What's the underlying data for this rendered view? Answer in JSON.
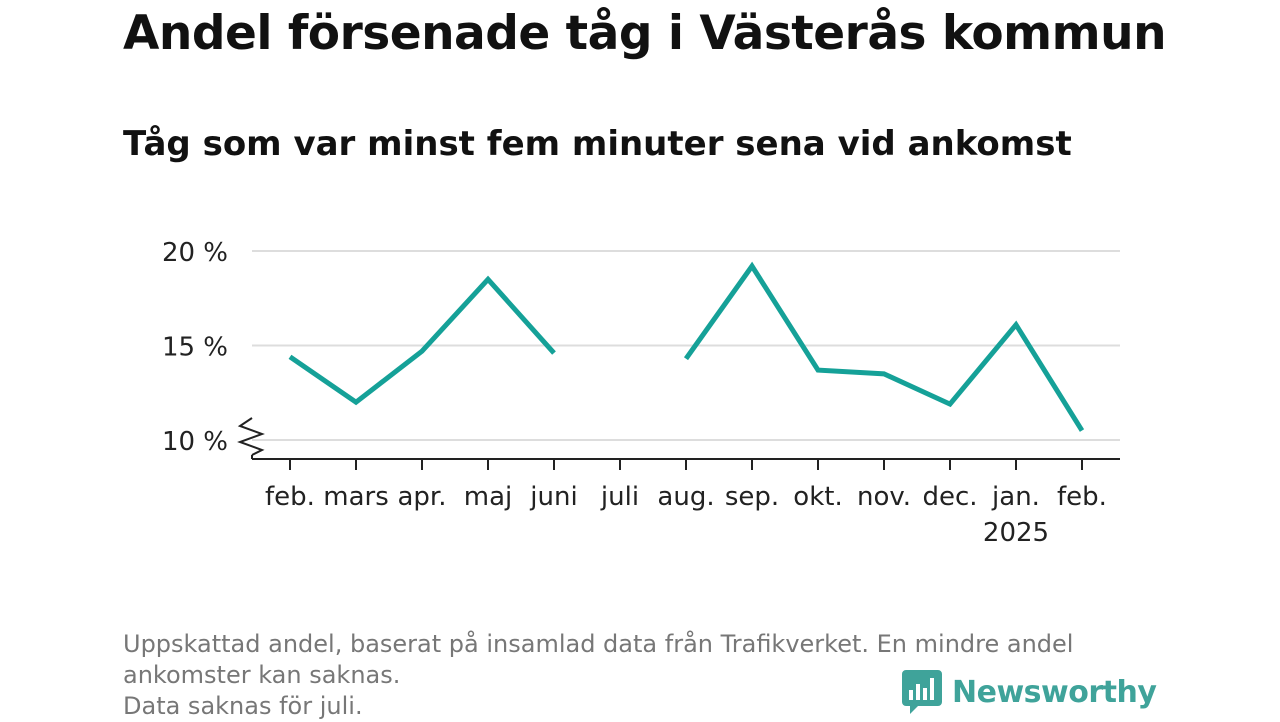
{
  "title": "Andel försenade tåg i Västerås kommun",
  "subtitle": "Tåg som var minst fem minuter sena vid ankomst",
  "footnote": {
    "line1": "Uppskattad andel, baserat på insamlad data från Trafikverket. En mindre andel",
    "line2": "ankomster kan saknas.",
    "line3": "Data saknas för juli."
  },
  "brand": {
    "name": "Newsworthy",
    "icon": "newsworthy-logo-icon",
    "color": "#3fa39a"
  },
  "chart_data": {
    "type": "line",
    "categories": [
      "feb.",
      "mars",
      "apr.",
      "maj",
      "juni",
      "juli",
      "aug.",
      "sep.",
      "okt.",
      "nov.",
      "dec.",
      "jan.",
      "feb."
    ],
    "year_labels": [
      "",
      "",
      "",
      "",
      "",
      "",
      "",
      "",
      "",
      "",
      "",
      "2025",
      ""
    ],
    "series": [
      {
        "values": [
          14.4,
          12.0,
          14.7,
          18.5,
          14.6,
          null,
          14.3,
          19.2,
          13.7,
          13.5,
          11.9,
          16.1,
          10.5
        ],
        "color": "#15a198"
      }
    ],
    "yticks": [
      10,
      15,
      20
    ],
    "ytick_labels": [
      "10 %",
      "15 %",
      "20 %"
    ],
    "ylim": [
      10,
      20
    ],
    "axis_break": true,
    "grid": true
  }
}
